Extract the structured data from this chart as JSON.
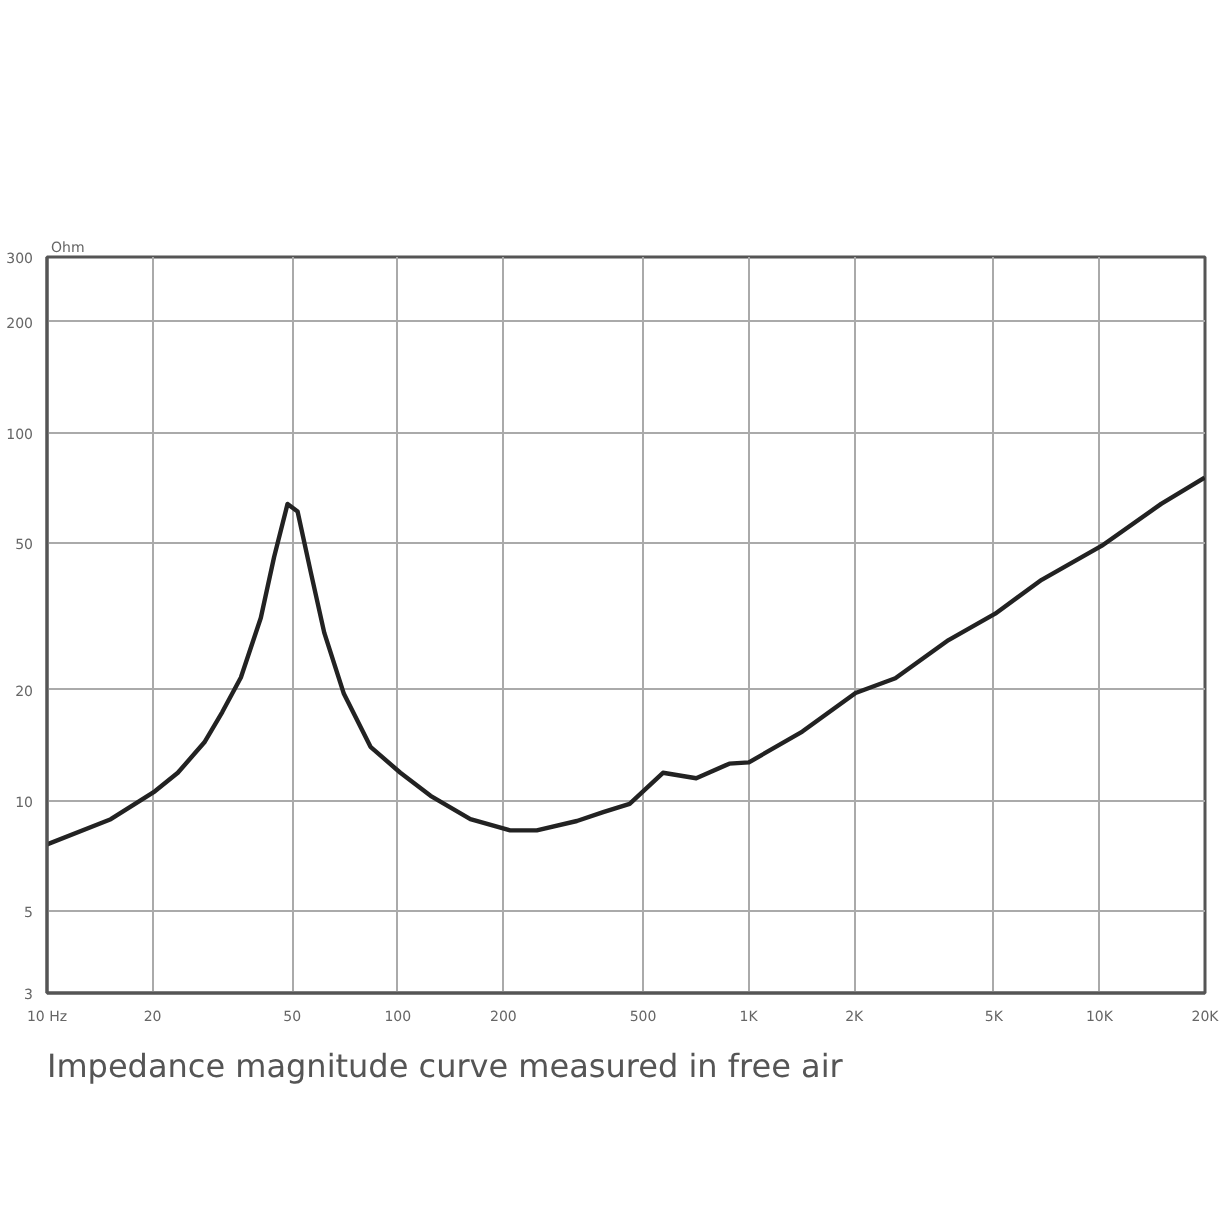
{
  "chart_data": {
    "type": "line",
    "ylabel": "Ohm",
    "log": "xy",
    "grid": true,
    "line_style": "solid",
    "marker": "none",
    "x": [
      10,
      15.2,
      20.3,
      23.6,
      28.1,
      31.6,
      35.7,
      40.7,
      44.4,
      48.5,
      51.8,
      56.5,
      61.7,
      70.2,
      83.6,
      101.7,
      124,
      161,
      209,
      249,
      324,
      385,
      458,
      570,
      709,
      881,
      1002,
      1423,
      2018,
      2620,
      3715,
      5047,
      6845,
      10140,
      15000,
      19950
    ],
    "series": [
      {
        "color": "#222222",
        "values": [
          7.6,
          8.9,
          10.6,
          11.9,
          14.4,
          17.4,
          21.6,
          31.4,
          45.9,
          64,
          61,
          41.7,
          28.6,
          19.5,
          14.0,
          11.9,
          10.3,
          8.9,
          8.3,
          8.3,
          8.8,
          9.3,
          9.8,
          11.9,
          11.5,
          12.6,
          12.7,
          15.4,
          19.6,
          21.5,
          27.3,
          32.2,
          39.8,
          49.2,
          64,
          75.4
        ]
      }
    ],
    "xlim": [
      10,
      20000
    ],
    "ylim": [
      3,
      300
    ],
    "xticks": [
      {
        "value": 10,
        "label": "10 Hz"
      },
      20,
      50,
      100,
      200,
      500,
      {
        "value": 1000,
        "label": "1K"
      },
      {
        "value": 2000,
        "label": "2K"
      },
      {
        "value": 5000,
        "label": "5K"
      },
      {
        "value": 10000,
        "label": "10K"
      },
      {
        "value": 20000,
        "label": "20K"
      }
    ],
    "yticks": [
      3,
      5,
      10,
      20,
      50,
      100,
      200,
      300
    ],
    "annotations": [
      "Impedance magnitude curve measured in free air"
    ]
  }
}
